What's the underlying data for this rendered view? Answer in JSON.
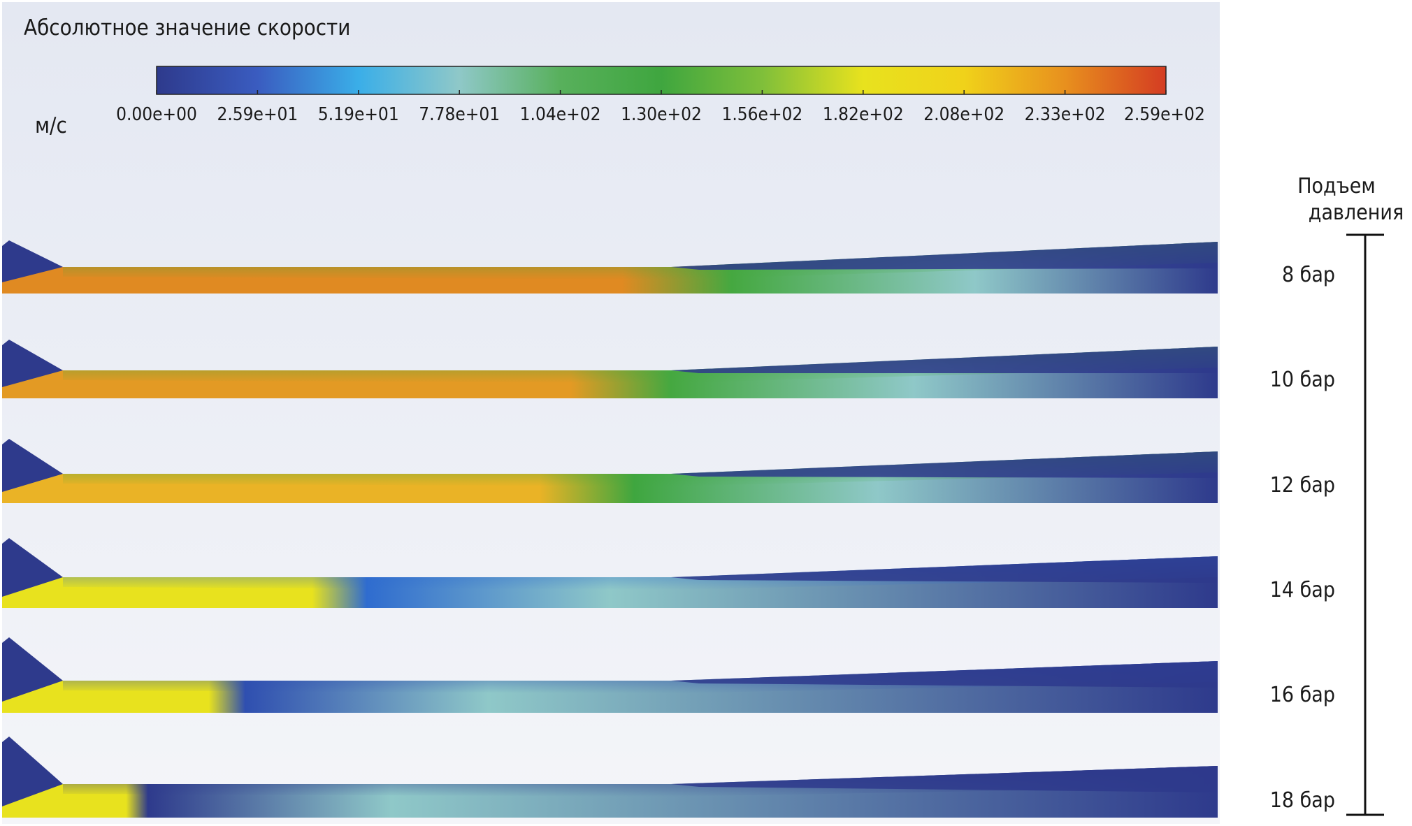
{
  "title": "Абсолютное значение скорости",
  "unit": "м/с",
  "colorbar": {
    "min": 0,
    "max": 259,
    "ticks": [
      "0.00e+00",
      "2.59e+01",
      "5.19e+01",
      "7.78e+01",
      "1.04e+02",
      "1.30e+02",
      "1.56e+02",
      "1.82e+02",
      "2.08e+02",
      "2.33e+02",
      "2.59e+02"
    ],
    "stops": [
      "#2e3a8c",
      "#3a5cc0",
      "#3aaee8",
      "#8fc8c8",
      "#58b05c",
      "#3fa63f",
      "#7fbf3a",
      "#e8e21e",
      "#f0d21a",
      "#e8901e",
      "#d43c22"
    ]
  },
  "pressure_axis": {
    "title_line1": "Подъем",
    "title_line2": "давления"
  },
  "cases": [
    {
      "label": "8 бар",
      "supersonic_extent": 0.6,
      "core_color": "#e08a22",
      "wall_color": "#45a840",
      "tail_color": "#2e3a8c"
    },
    {
      "label": "10 бар",
      "supersonic_extent": 0.55,
      "core_color": "#e39a24",
      "wall_color": "#45a840",
      "tail_color": "#2e3a8c"
    },
    {
      "label": "12 бар",
      "supersonic_extent": 0.52,
      "core_color": "#eab326",
      "wall_color": "#3fa63f",
      "tail_color": "#2e3a8c"
    },
    {
      "label": "14 бар",
      "supersonic_extent": 0.3,
      "core_color": "#e8e21e",
      "wall_color": "#2f6ccf",
      "tail_color": "#2e3a8c"
    },
    {
      "label": "16 бар",
      "supersonic_extent": 0.2,
      "core_color": "#e8e21e",
      "wall_color": "#2f4fb0",
      "tail_color": "#2e3a8c"
    },
    {
      "label": "18 бар",
      "supersonic_extent": 0.12,
      "core_color": "#e8e21e",
      "wall_color": "#2e3a8c",
      "tail_color": "#2e3a8c"
    }
  ]
}
